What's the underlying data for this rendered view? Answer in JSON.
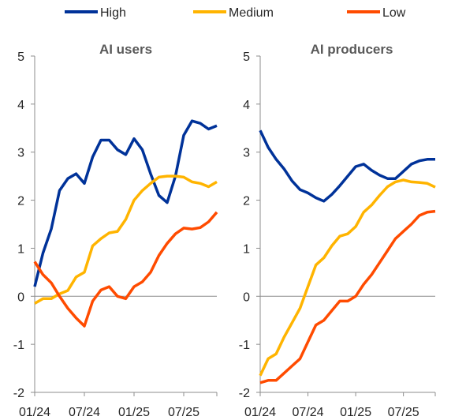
{
  "chart_data": [
    {
      "type": "line",
      "title": "AI users",
      "ylim": [
        -2,
        5
      ],
      "yticks": [
        "5",
        "4",
        "3",
        "2",
        "1",
        "0",
        "-1",
        "-2"
      ],
      "xticks": [
        "01/24",
        "07/24",
        "01/25",
        "07/25"
      ],
      "x_start": "01/24",
      "x_end": "12/25",
      "series": [
        {
          "name": "High",
          "color": "#003299",
          "values": [
            0.2,
            0.9,
            1.4,
            2.2,
            2.45,
            2.55,
            2.35,
            2.9,
            3.25,
            3.25,
            3.05,
            2.95,
            3.28,
            3.05,
            2.55,
            2.1,
            1.95,
            2.5,
            3.35,
            3.65,
            3.6,
            3.48,
            3.55
          ]
        },
        {
          "name": "Medium",
          "color": "#FFB400",
          "values": [
            -0.15,
            -0.05,
            -0.05,
            0.05,
            0.12,
            0.4,
            0.5,
            1.05,
            1.2,
            1.32,
            1.35,
            1.6,
            2.0,
            2.2,
            2.35,
            2.48,
            2.5,
            2.5,
            2.48,
            2.38,
            2.35,
            2.28,
            2.38
          ]
        },
        {
          "name": "Low",
          "color": "#FF4B00",
          "values": [
            0.72,
            0.45,
            0.28,
            0.0,
            -0.25,
            -0.45,
            -0.62,
            -0.1,
            0.13,
            0.2,
            0.0,
            -0.05,
            0.2,
            0.3,
            0.5,
            0.85,
            1.1,
            1.3,
            1.42,
            1.4,
            1.43,
            1.55,
            1.75
          ]
        }
      ]
    },
    {
      "type": "line",
      "title": "AI producers",
      "ylim": [
        -2,
        5
      ],
      "yticks": [
        "5",
        "4",
        "3",
        "2",
        "1",
        "0",
        "-1",
        "-2"
      ],
      "xticks": [
        "01/24",
        "07/24",
        "01/25",
        "07/25"
      ],
      "x_start": "01/24",
      "x_end": "12/25",
      "series": [
        {
          "name": "High",
          "color": "#003299",
          "values": [
            3.45,
            3.1,
            2.85,
            2.65,
            2.4,
            2.22,
            2.15,
            2.05,
            1.98,
            2.12,
            2.3,
            2.5,
            2.7,
            2.75,
            2.62,
            2.52,
            2.45,
            2.45,
            2.6,
            2.75,
            2.82,
            2.85,
            2.85
          ]
        },
        {
          "name": "Medium",
          "color": "#FFB400",
          "values": [
            -1.65,
            -1.3,
            -1.2,
            -0.85,
            -0.55,
            -0.25,
            0.2,
            0.65,
            0.8,
            1.05,
            1.25,
            1.3,
            1.45,
            1.75,
            1.9,
            2.1,
            2.28,
            2.38,
            2.42,
            2.38,
            2.37,
            2.35,
            2.27
          ]
        },
        {
          "name": "Low",
          "color": "#FF4B00",
          "values": [
            -1.8,
            -1.75,
            -1.75,
            -1.6,
            -1.45,
            -1.3,
            -0.95,
            -0.6,
            -0.5,
            -0.3,
            -0.1,
            -0.1,
            0.0,
            0.25,
            0.45,
            0.7,
            0.95,
            1.2,
            1.35,
            1.5,
            1.68,
            1.75,
            1.77
          ]
        }
      ]
    }
  ],
  "legend": [
    {
      "name": "High",
      "color": "#003299"
    },
    {
      "name": "Medium",
      "color": "#FFB400"
    },
    {
      "name": "Low",
      "color": "#FF4B00"
    }
  ]
}
